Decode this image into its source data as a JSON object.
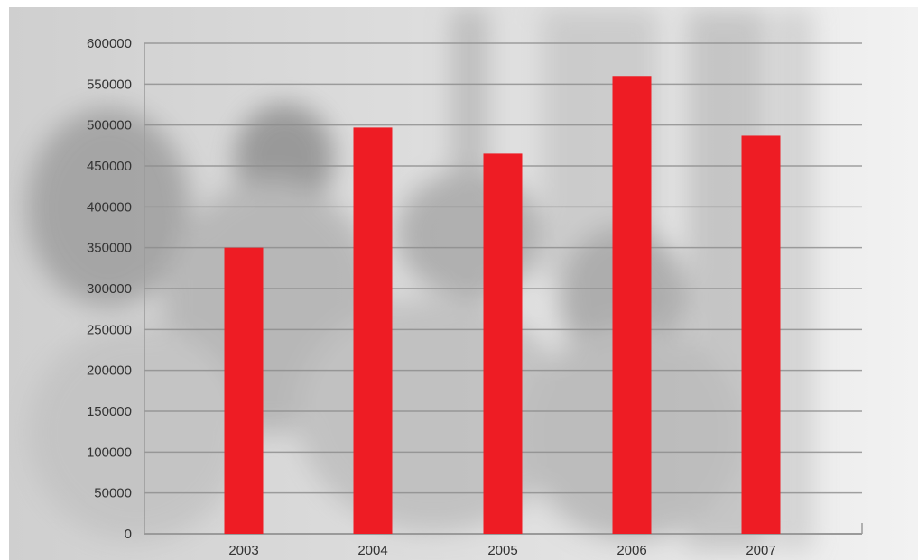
{
  "chart_data": {
    "type": "bar",
    "title": "",
    "xlabel": "",
    "ylabel": "",
    "categories": [
      "2003",
      "2004",
      "2005",
      "2006",
      "2007"
    ],
    "values": [
      350000,
      497000,
      465000,
      560000,
      487000
    ],
    "ylim": [
      0,
      600000
    ],
    "yticks": [
      "0",
      "50000",
      "100000",
      "150000",
      "200000",
      "250000",
      "300000",
      "350000",
      "400000",
      "450000",
      "500000",
      "550000",
      "600000"
    ],
    "grid": true,
    "bar_color": "#ee1c24",
    "background": "grayscale photo of a family gathered at a window"
  }
}
